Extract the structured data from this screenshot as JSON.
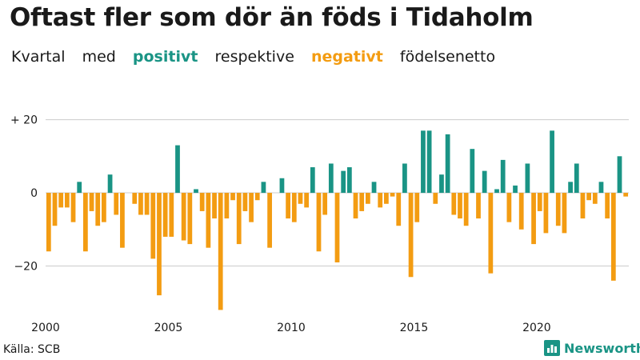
{
  "title": "Oftast fler som dör än föds i Tidaholm",
  "subtitle": {
    "w1": "Kvartal",
    "w2": "med",
    "positive": "positivt",
    "w3": "respektive",
    "negative": "negativt",
    "w4": "födelsenetto"
  },
  "colors": {
    "positive": "#1a9485",
    "negative": "#f39c12",
    "grid": "#cccccc",
    "text": "#1a1a1a"
  },
  "source": "Källa: SCB",
  "brand": {
    "name": "Newsworthy",
    "icon": "bar-chart-icon"
  },
  "chart_data": {
    "type": "bar",
    "title": "Oftast fler som dör än föds i Tidaholm",
    "xlabel": "",
    "ylabel": "",
    "categories_start": "2000 Q1",
    "period": "quarter",
    "y_ticks": [
      {
        "value": 20,
        "label": "+ 20"
      },
      {
        "value": 0,
        "label": "0"
      },
      {
        "value": -20,
        "label": "−20"
      }
    ],
    "x_ticks": [
      "2000",
      "2005",
      "2010",
      "2015",
      "2020"
    ],
    "x_tick_start_years": [
      2000,
      2005,
      2010,
      2015,
      2020
    ],
    "first_year": 2000,
    "ylim": [
      -33,
      21
    ],
    "values": [
      -16,
      -9,
      -4,
      -4,
      -8,
      3,
      -16,
      -5,
      -9,
      -8,
      5,
      -6,
      -15,
      0,
      -3,
      -6,
      -6,
      -18,
      -28,
      -12,
      -12,
      13,
      -13,
      -14,
      1,
      -5,
      -15,
      -7,
      -32,
      -7,
      -2,
      -14,
      -5,
      -8,
      -2,
      3,
      -15,
      0,
      4,
      -7,
      -8,
      -3,
      -4,
      7,
      -16,
      -6,
      8,
      -19,
      6,
      7,
      -7,
      -5,
      -3,
      3,
      -4,
      -3,
      -1,
      -9,
      8,
      -23,
      -8,
      17,
      17,
      -3,
      5,
      16,
      -6,
      -7,
      -9,
      12,
      -7,
      6,
      -22,
      1,
      9,
      -8,
      2,
      -10,
      8,
      -14,
      -5,
      -11,
      17,
      -9,
      -11,
      3,
      8,
      -7,
      -2,
      -3,
      3,
      -7,
      -24,
      10,
      -1
    ]
  }
}
